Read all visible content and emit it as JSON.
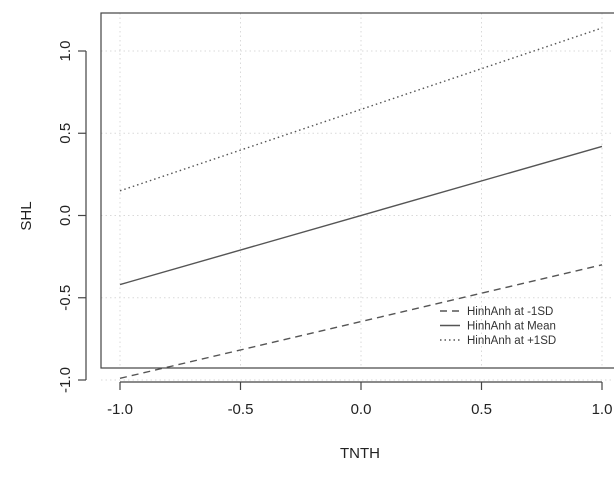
{
  "chart_data": {
    "type": "line",
    "xlabel": "TNTH",
    "ylabel": "SHL",
    "xlim": [
      -1.0,
      1.0
    ],
    "ylim": [
      -1.0,
      1.15
    ],
    "x_ticks": [
      -1.0,
      -0.5,
      0.0,
      0.5,
      1.0
    ],
    "x_tick_labels": [
      "-1.0",
      "-0.5",
      "0.0",
      "0.5",
      "1.0"
    ],
    "y_ticks": [
      -1.0,
      -0.5,
      0.0,
      0.5,
      1.0
    ],
    "y_tick_labels": [
      "-1.0",
      "-0.5",
      "0.0",
      "0.5",
      "1.0"
    ],
    "grid": true,
    "legend_position": "bottom-right",
    "series": [
      {
        "name": "HinhAnh at -1SD",
        "style": "dashed",
        "x": [
          -1.0,
          1.0
        ],
        "y": [
          -0.99,
          -0.3
        ]
      },
      {
        "name": "HinhAnh at Mean",
        "style": "solid",
        "x": [
          -1.0,
          1.0
        ],
        "y": [
          -0.42,
          0.42
        ]
      },
      {
        "name": "HinhAnh at +1SD",
        "style": "dotted",
        "x": [
          -1.0,
          1.0
        ],
        "y": [
          0.15,
          1.14
        ]
      }
    ],
    "line_color": "#555555"
  }
}
